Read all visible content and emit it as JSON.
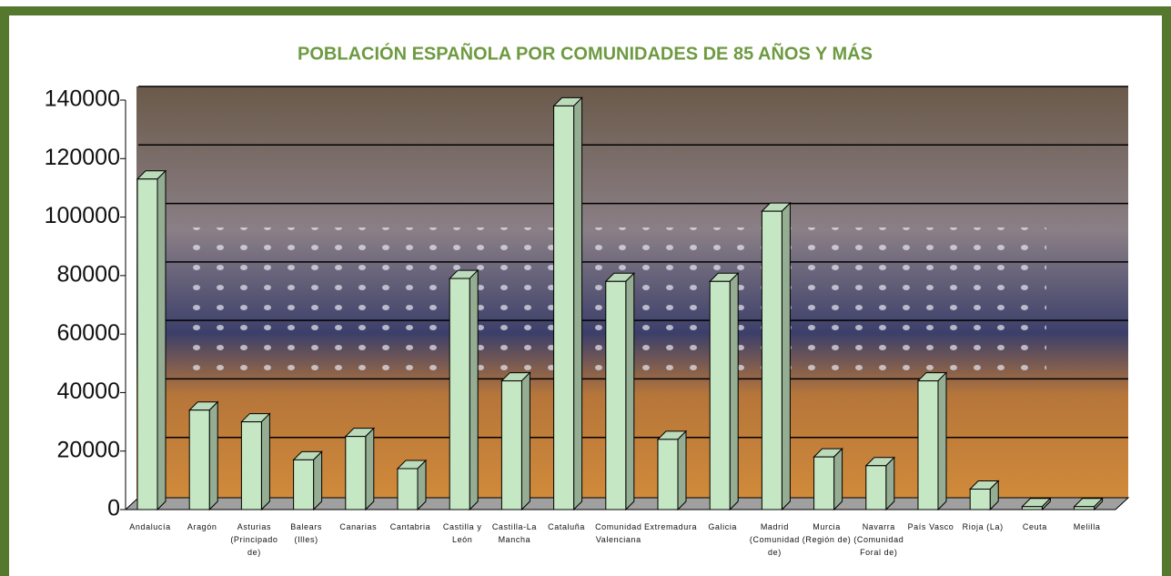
{
  "chart_data": {
    "type": "bar3d",
    "title": "POBLACIÓN ESPAÑOLA POR COMUNIDADES DE 85 AÑOS Y MÁS",
    "categories": [
      "Andalucía",
      "Aragón",
      "Asturias (Principado de)",
      "Balears (Illes)",
      "Canarias",
      "Cantabria",
      "Castilla y León",
      "Castilla-La Mancha",
      "Cataluña",
      "Comunidad Valenciana",
      "Extremadura",
      "Galicia",
      "Madrid (Comunidad de)",
      "Murcia (Región de)",
      "Navarra (Comunidad Foral de)",
      "País Vasco",
      "Rioja (La)",
      "Ceuta",
      "Melilla"
    ],
    "values": [
      113000,
      34000,
      30000,
      17000,
      25000,
      14000,
      79000,
      44000,
      138000,
      78000,
      24000,
      78000,
      102000,
      18000,
      15000,
      44000,
      7000,
      1000,
      1000
    ],
    "color": "#c6e7c4",
    "ylim": [
      0,
      140000
    ],
    "yticks": [
      0,
      20000,
      40000,
      60000,
      80000,
      100000,
      120000,
      140000
    ],
    "grid": true
  }
}
